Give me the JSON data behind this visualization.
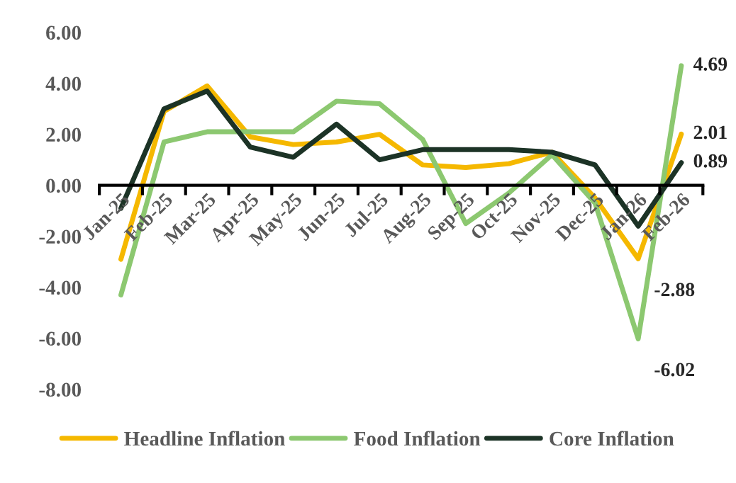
{
  "chart_data": {
    "type": "line",
    "categories": [
      "Jan-25",
      "Feb-25",
      "Mar-25",
      "Apr-25",
      "May-25",
      "Jun-25",
      "Jul-25",
      "Aug-25",
      "Sep-25",
      "Oct-25",
      "Nov-25",
      "Dec-25",
      "Jan-26",
      "Feb-26"
    ],
    "series": [
      {
        "name": "Headline Inflation",
        "color": "#f5b800",
        "values": [
          -2.9,
          2.9,
          3.9,
          1.9,
          1.6,
          1.7,
          2.0,
          0.8,
          0.7,
          0.85,
          1.3,
          -0.5,
          -2.88,
          2.01
        ],
        "value_labels": [
          null,
          null,
          null,
          null,
          null,
          null,
          null,
          null,
          null,
          null,
          null,
          null,
          "-2.88",
          "2.01"
        ]
      },
      {
        "name": "Food Inflation",
        "color": "#8cc870",
        "values": [
          -4.3,
          1.7,
          2.1,
          2.1,
          2.1,
          3.3,
          3.2,
          1.8,
          -1.5,
          -0.3,
          1.2,
          -0.7,
          -6.02,
          4.69
        ],
        "value_labels": [
          null,
          null,
          null,
          null,
          null,
          null,
          null,
          null,
          null,
          null,
          null,
          null,
          "-6.02",
          "4.69"
        ]
      },
      {
        "name": "Core Inflation",
        "color": "#1c3326",
        "values": [
          -0.9,
          3.0,
          3.7,
          1.5,
          1.1,
          2.4,
          1.0,
          1.4,
          1.4,
          1.4,
          1.3,
          0.8,
          -1.6,
          0.89
        ],
        "value_labels": [
          null,
          null,
          null,
          null,
          null,
          null,
          null,
          null,
          null,
          null,
          null,
          null,
          null,
          "0.89"
        ]
      }
    ],
    "ylim": [
      -8,
      6
    ],
    "yticks": [
      {
        "value": -8,
        "label": "-8.00"
      },
      {
        "value": -6,
        "label": "-6.00"
      },
      {
        "value": -4,
        "label": "-4.00"
      },
      {
        "value": -2,
        "label": "-2.00"
      },
      {
        "value": 0,
        "label": "0.00"
      },
      {
        "value": 2,
        "label": "2.00"
      },
      {
        "value": 4,
        "label": "4.00"
      },
      {
        "value": 6,
        "label": "6.00"
      }
    ],
    "grid": false,
    "legend": "bottom",
    "line_style": "solid"
  }
}
